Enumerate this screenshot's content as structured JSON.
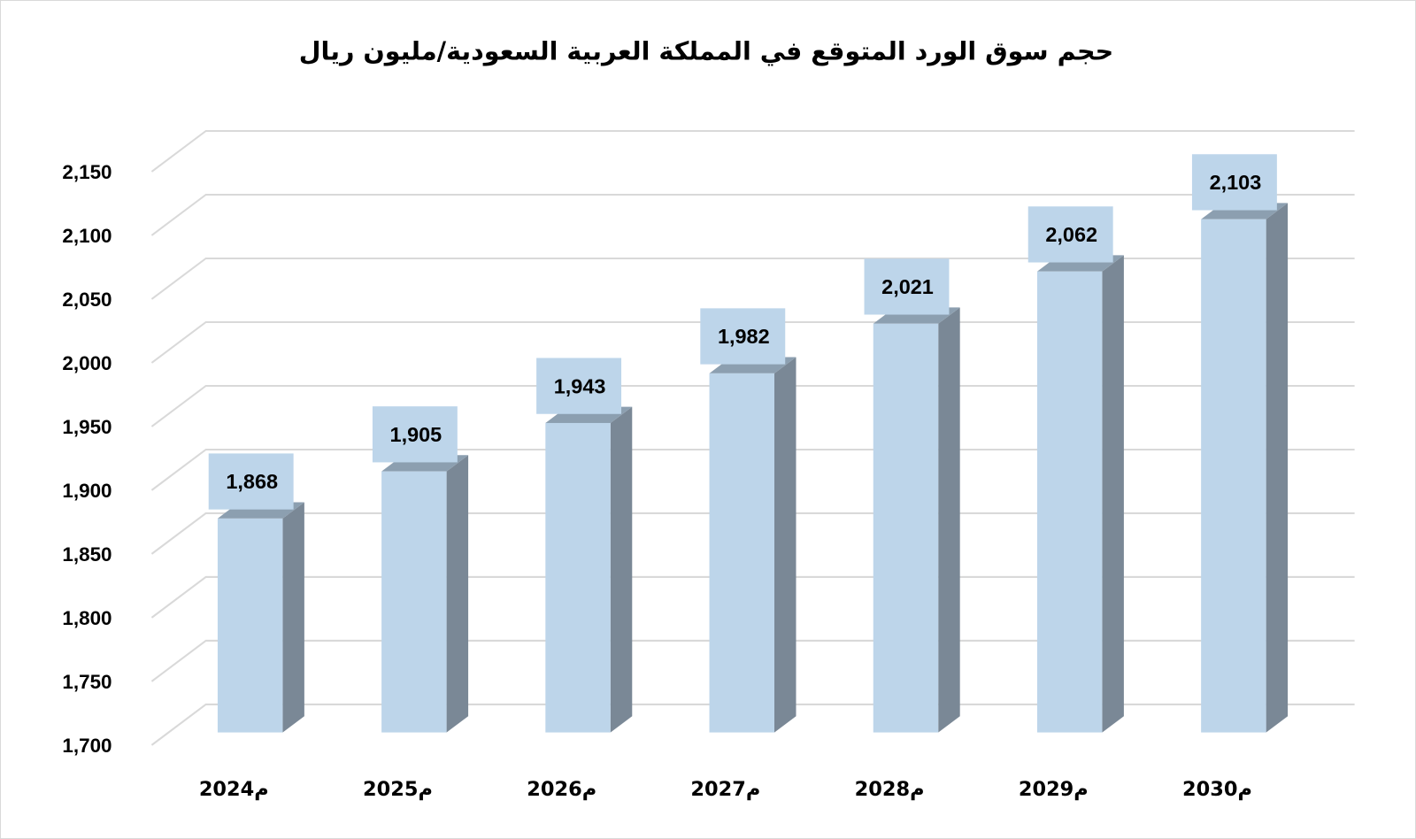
{
  "chart_data": {
    "type": "bar",
    "title": "حجم سوق الورد المتوقع في المملكة العربية السعودية/مليون ريال",
    "categories": [
      "2024م",
      "2025م",
      "2026م",
      "2027م",
      "2028م",
      "2029م",
      "2030م"
    ],
    "values": [
      1868,
      1905,
      1943,
      1982,
      2021,
      2062,
      2103
    ],
    "data_labels": [
      "1,868",
      "1,905",
      "1,943",
      "1,982",
      "2,021",
      "2,062",
      "2,103"
    ],
    "ylim": [
      1700,
      2150
    ],
    "yticks": [
      "1,700",
      "1,750",
      "1,800",
      "1,850",
      "1,900",
      "1,950",
      "2,000",
      "2,050",
      "2,100",
      "2,150"
    ],
    "ytick_values": [
      1700,
      1750,
      1800,
      1850,
      1900,
      1950,
      2000,
      2050,
      2100,
      2150
    ],
    "grid": true,
    "xlabel": "",
    "ylabel": "",
    "colors": {
      "front": "#BDD5EA",
      "side": "#7A8896",
      "top": "#8C9FB0",
      "label_bg": "#BDD5EA",
      "grid": "#D9D9D9"
    }
  }
}
